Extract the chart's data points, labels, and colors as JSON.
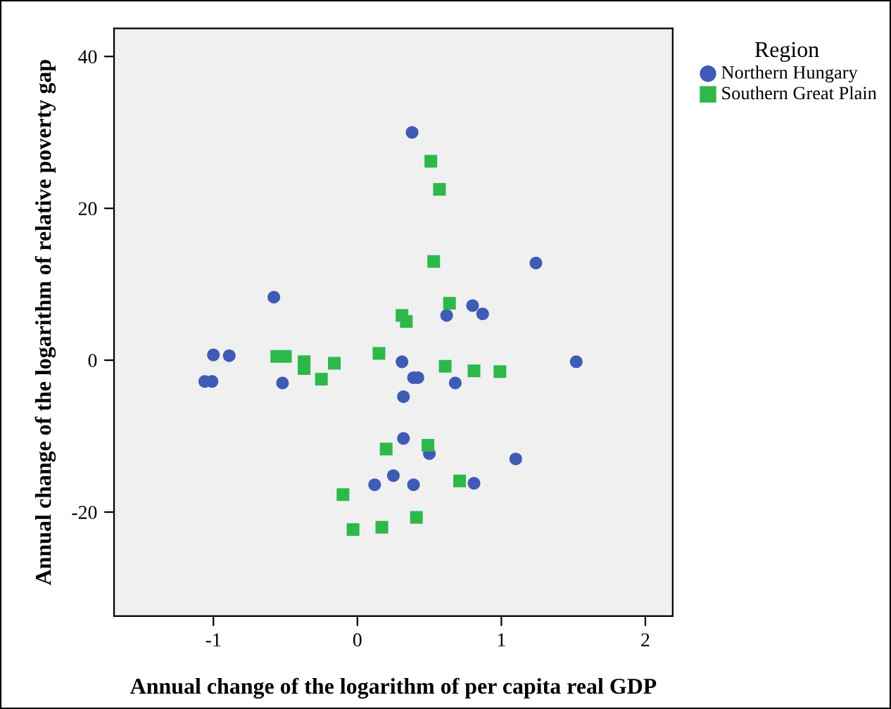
{
  "chart_data": {
    "type": "scatter",
    "xlabel": "Annual change of the logarithm of per capita real GDP",
    "ylabel": "Annual change of the logarithm of relative poverty gap",
    "legend_title": "Region",
    "legend": "right",
    "grid": false,
    "xlim": [
      -1.69,
      2.19
    ],
    "ylim": [
      -33.7,
      43.7
    ],
    "xticks": [
      -1,
      0,
      1,
      2
    ],
    "yticks": [
      -20,
      0,
      20,
      40
    ],
    "series": [
      {
        "name": "Northern Hungary",
        "color": "#3f5bb5",
        "marker": "circle",
        "x": [
          0.38,
          1.24,
          -0.58,
          0.8,
          0.62,
          0.87,
          -1.0,
          -0.89,
          0.31,
          1.52,
          -1.06,
          -1.01,
          -0.52,
          0.39,
          0.42,
          0.68,
          0.32,
          0.32,
          0.5,
          1.1,
          0.25,
          0.12,
          0.39,
          0.81
        ],
        "values": [
          30.0,
          12.8,
          8.3,
          7.2,
          5.9,
          6.1,
          0.7,
          0.6,
          -0.2,
          -0.2,
          -2.8,
          -2.8,
          -3.0,
          -2.3,
          -2.3,
          -3.0,
          -4.8,
          -10.3,
          -12.3,
          -13.0,
          -15.2,
          -16.4,
          -16.4,
          -16.2
        ]
      },
      {
        "name": "Southern Great Plain",
        "color": "#2db84a",
        "marker": "square",
        "x": [
          0.51,
          0.57,
          0.53,
          0.64,
          0.31,
          0.34,
          -0.56,
          -0.5,
          -0.37,
          -0.37,
          -0.16,
          -0.25,
          0.15,
          0.61,
          0.81,
          0.99,
          0.2,
          0.49,
          0.71,
          -0.1,
          -0.03,
          0.17,
          0.41
        ],
        "values": [
          26.2,
          22.5,
          13.0,
          7.5,
          5.9,
          5.1,
          0.5,
          0.5,
          -0.2,
          -1.1,
          -0.4,
          -2.5,
          0.9,
          -0.8,
          -1.4,
          -1.5,
          -11.7,
          -11.2,
          -15.9,
          -17.7,
          -22.3,
          -22.0,
          -20.7
        ]
      }
    ]
  }
}
